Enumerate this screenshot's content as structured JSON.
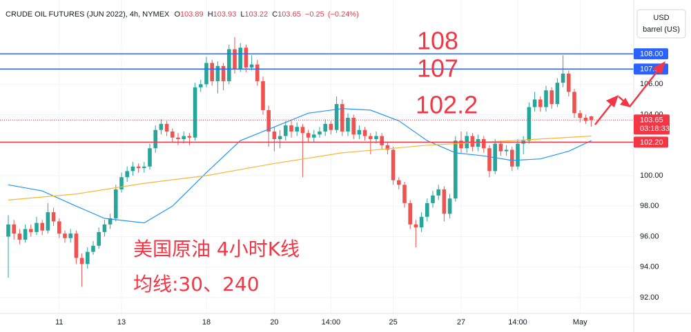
{
  "chart_data": {
    "type": "candlestick",
    "legend": {
      "symbol": "CRUDE OIL FUTURES (JUN 2022), 4h, NYMEX",
      "labels": [
        "O",
        "H",
        "L",
        "C"
      ],
      "change": {
        "value": -0.25,
        "label": "−0.25"
      },
      "change_pct": {
        "value": -0.24,
        "label": "(−0.24%)"
      }
    },
    "currency": {
      "code": "USD",
      "unit": "barrel (US)"
    },
    "up_color": "#26a69a",
    "down_color": "#ef5350",
    "ylim": [
      90.96,
      111.53
    ],
    "yticks": [
      {
        "value": 92,
        "label": "92.00"
      },
      {
        "value": 94,
        "label": "94.00"
      },
      {
        "value": 96,
        "label": "96.00"
      },
      {
        "value": 98,
        "label": "98.00"
      },
      {
        "value": 100,
        "label": "100.00"
      },
      {
        "value": 102,
        "label": "102.00"
      },
      {
        "value": 104,
        "label": "104.00"
      },
      {
        "value": 106,
        "label": "106.00"
      }
    ],
    "grid": true,
    "categories": [
      null,
      null,
      null,
      null,
      null,
      null,
      null,
      null,
      null,
      "11",
      null,
      null,
      null,
      null,
      null,
      null,
      null,
      null,
      null,
      null,
      "13",
      null,
      null,
      null,
      null,
      null,
      null,
      null,
      null,
      null,
      null,
      null,
      null,
      null,
      null,
      "18",
      null,
      null,
      null,
      null,
      null,
      null,
      null,
      null,
      null,
      null,
      null,
      "20",
      null,
      null,
      null,
      null,
      null,
      null,
      null,
      null,
      null,
      "14:00",
      null,
      null,
      null,
      null,
      null,
      null,
      null,
      null,
      null,
      null,
      "25",
      null,
      null,
      null,
      null,
      null,
      null,
      null,
      null,
      null,
      null,
      null,
      "27",
      null,
      null,
      null,
      null,
      null,
      null,
      null,
      null,
      null,
      "14:00",
      null,
      null,
      null,
      null,
      null,
      null,
      null,
      null,
      null,
      null,
      "May",
      null,
      null
    ],
    "ohlc": [
      [
        96.0,
        97.4,
        93.3,
        96.8
      ],
      [
        96.8,
        97.1,
        95.8,
        96.2
      ],
      [
        96.2,
        96.5,
        95.5,
        95.8
      ],
      [
        95.8,
        96.8,
        95.6,
        96.5
      ],
      [
        96.5,
        96.8,
        96.0,
        96.3
      ],
      [
        96.3,
        97.3,
        96.1,
        96.9
      ],
      [
        96.9,
        97.1,
        96.1,
        96.4
      ],
      [
        96.4,
        98.2,
        96.2,
        97.6
      ],
      [
        97.6,
        97.9,
        96.7,
        97.0
      ],
      [
        97.0,
        97.2,
        95.9,
        96.2
      ],
      [
        96.2,
        96.4,
        95.6,
        95.9
      ],
      [
        95.9,
        96.5,
        95.6,
        96.2
      ],
      [
        96.2,
        96.4,
        94.2,
        94.6
      ],
      [
        94.6,
        94.9,
        92.7,
        94.2
      ],
      [
        94.2,
        95.3,
        93.9,
        95.0
      ],
      [
        95.0,
        95.7,
        94.8,
        95.4
      ],
      [
        95.4,
        96.6,
        95.2,
        96.3
      ],
      [
        96.3,
        97.1,
        96.0,
        96.8
      ],
      [
        96.8,
        97.5,
        96.5,
        97.2
      ],
      [
        97.2,
        99.4,
        97.0,
        99.1
      ],
      [
        99.1,
        100.2,
        98.9,
        99.9
      ],
      [
        99.9,
        100.6,
        99.6,
        100.3
      ],
      [
        100.3,
        100.9,
        100.0,
        100.6
      ],
      [
        100.6,
        100.8,
        100.2,
        100.5
      ],
      [
        100.5,
        100.9,
        100.2,
        100.6
      ],
      [
        100.6,
        102.1,
        100.4,
        101.8
      ],
      [
        101.8,
        103.3,
        101.5,
        103.0
      ],
      [
        103.0,
        103.7,
        102.7,
        103.4
      ],
      [
        103.4,
        103.6,
        102.6,
        102.9
      ],
      [
        102.9,
        103.1,
        102.2,
        102.5
      ],
      [
        102.5,
        102.8,
        102.0,
        102.4
      ],
      [
        102.4,
        102.9,
        102.1,
        102.6
      ],
      [
        102.6,
        102.8,
        102.0,
        102.5
      ],
      [
        102.5,
        106.1,
        102.3,
        105.8
      ],
      [
        105.8,
        106.3,
        105.5,
        106.0
      ],
      [
        106.0,
        107.8,
        105.8,
        107.4
      ],
      [
        107.4,
        107.6,
        105.9,
        106.2
      ],
      [
        106.2,
        107.5,
        105.4,
        107.2
      ],
      [
        107.2,
        107.4,
        105.6,
        106.2
      ],
      [
        106.2,
        108.6,
        106.0,
        108.3
      ],
      [
        108.3,
        109.1,
        106.7,
        107.0
      ],
      [
        107.0,
        108.7,
        106.8,
        108.4
      ],
      [
        108.4,
        108.6,
        106.8,
        107.1
      ],
      [
        107.1,
        107.9,
        106.9,
        107.3
      ],
      [
        107.3,
        107.6,
        105.9,
        106.2
      ],
      [
        106.2,
        106.5,
        104.0,
        104.3
      ],
      [
        104.3,
        104.6,
        101.9,
        102.9
      ],
      [
        102.9,
        103.2,
        101.6,
        102.4
      ],
      [
        102.4,
        103.0,
        101.8,
        102.6
      ],
      [
        102.6,
        103.6,
        102.3,
        103.3
      ],
      [
        103.3,
        103.6,
        102.5,
        102.9
      ],
      [
        102.9,
        103.5,
        102.6,
        103.2
      ],
      [
        103.2,
        103.4,
        99.9,
        102.8
      ],
      [
        102.8,
        103.0,
        102.2,
        102.5
      ],
      [
        102.5,
        103.0,
        102.2,
        102.7
      ],
      [
        102.7,
        103.2,
        102.5,
        102.9
      ],
      [
        102.9,
        103.7,
        102.6,
        103.4
      ],
      [
        103.4,
        103.6,
        102.7,
        103.0
      ],
      [
        103.0,
        105.2,
        102.8,
        104.7
      ],
      [
        104.7,
        105.0,
        102.6,
        102.9
      ],
      [
        102.9,
        104.1,
        102.6,
        103.8
      ],
      [
        103.8,
        104.0,
        102.4,
        102.7
      ],
      [
        102.7,
        103.3,
        102.4,
        103.0
      ],
      [
        103.0,
        103.2,
        102.3,
        102.6
      ],
      [
        102.6,
        102.8,
        101.4,
        102.4
      ],
      [
        102.4,
        102.9,
        102.1,
        102.6
      ],
      [
        102.6,
        102.8,
        101.7,
        102.0
      ],
      [
        102.0,
        102.2,
        101.4,
        101.7
      ],
      [
        101.7,
        101.9,
        99.4,
        99.7
      ],
      [
        99.7,
        99.9,
        99.1,
        99.4
      ],
      [
        99.4,
        99.6,
        97.9,
        98.2
      ],
      [
        98.2,
        98.4,
        96.5,
        96.8
      ],
      [
        96.8,
        97.1,
        95.3,
        96.6
      ],
      [
        96.6,
        97.6,
        96.3,
        97.3
      ],
      [
        97.3,
        98.5,
        97.0,
        98.2
      ],
      [
        98.2,
        99.0,
        97.9,
        98.7
      ],
      [
        98.7,
        99.4,
        98.4,
        99.1
      ],
      [
        99.1,
        99.3,
        97.0,
        97.5
      ],
      [
        97.5,
        98.8,
        97.2,
        98.5
      ],
      [
        98.5,
        102.6,
        98.3,
        102.3
      ],
      [
        102.3,
        102.9,
        101.5,
        101.8
      ],
      [
        101.8,
        102.9,
        101.5,
        102.6
      ],
      [
        102.6,
        102.8,
        101.6,
        101.9
      ],
      [
        101.9,
        102.7,
        101.6,
        102.4
      ],
      [
        102.4,
        102.6,
        101.5,
        101.8
      ],
      [
        101.8,
        102.0,
        99.9,
        100.3
      ],
      [
        100.3,
        102.4,
        100.1,
        102.1
      ],
      [
        102.1,
        102.3,
        101.3,
        101.6
      ],
      [
        101.6,
        102.0,
        101.3,
        101.7
      ],
      [
        101.7,
        101.9,
        100.3,
        100.6
      ],
      [
        100.6,
        102.4,
        100.4,
        102.1
      ],
      [
        102.1,
        102.6,
        101.4,
        102.3
      ],
      [
        102.3,
        104.8,
        102.1,
        104.5
      ],
      [
        104.5,
        105.5,
        104.2,
        105.0
      ],
      [
        105.0,
        105.2,
        104.2,
        104.5
      ],
      [
        104.5,
        105.9,
        104.2,
        105.6
      ],
      [
        105.6,
        105.8,
        104.4,
        104.7
      ],
      [
        104.7,
        106.4,
        104.5,
        106.1
      ],
      [
        106.1,
        107.9,
        105.8,
        106.7
      ],
      [
        106.7,
        106.9,
        105.2,
        105.5
      ],
      [
        105.5,
        105.7,
        103.8,
        104.1
      ],
      [
        104.1,
        104.3,
        103.5,
        103.8
      ],
      [
        103.8,
        104.0,
        103.4,
        103.6
      ],
      [
        103.89,
        103.93,
        103.22,
        103.65
      ]
    ],
    "overlays": [
      {
        "color": "#2196f3",
        "x": [
          0,
          6,
          12,
          17,
          24,
          29,
          35,
          41,
          47,
          53,
          59,
          64,
          69,
          74,
          79,
          84,
          89,
          94,
          99,
          103
        ],
        "values": [
          99.4,
          99.0,
          98.0,
          97.2,
          96.9,
          98.0,
          100.2,
          102.3,
          103.2,
          104.1,
          104.4,
          104.3,
          103.6,
          102.3,
          101.5,
          101.3,
          101.0,
          101.1,
          101.6,
          102.3
        ]
      },
      {
        "color": "#f5b82e",
        "x": [
          0,
          12,
          24,
          35,
          47,
          59,
          74,
          89,
          103
        ],
        "values": [
          98.4,
          98.8,
          99.5,
          100.0,
          100.8,
          101.5,
          102.0,
          102.3,
          102.6
        ]
      }
    ],
    "levels": [
      {
        "value": 108,
        "label": "108.00",
        "color": "#2962ff"
      },
      {
        "value": 107,
        "label": "107.00",
        "color": "#2962ff"
      },
      {
        "value": 102.2,
        "label": "102.20",
        "color": "#f23645"
      }
    ],
    "last": {
      "value": 103.65,
      "label": "103.65",
      "countdown": "03:18:33",
      "color": "#f23645"
    },
    "annotations": [
      "108",
      "107",
      "102.2",
      "美国原油 4小时K线",
      "均线:30、240"
    ]
  }
}
